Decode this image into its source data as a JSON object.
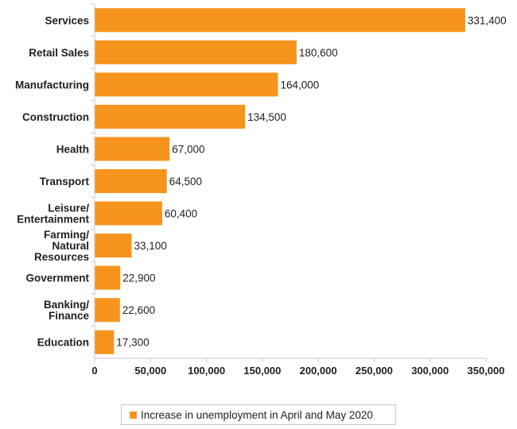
{
  "chart_data": {
    "type": "bar",
    "orientation": "horizontal",
    "categories": [
      [
        "Services"
      ],
      [
        "Retail Sales"
      ],
      [
        "Manufacturing"
      ],
      [
        "Construction"
      ],
      [
        "Health"
      ],
      [
        "Transport"
      ],
      [
        "Leisure/",
        "Entertainment"
      ],
      [
        "Farming/",
        "Natural",
        "Resources"
      ],
      [
        "Government"
      ],
      [
        "Banking/",
        "Finance"
      ],
      [
        "Education"
      ]
    ],
    "series": [
      {
        "name": "Increase in unemployment in April and May 2020",
        "values": [
          331400,
          180600,
          164000,
          134500,
          67000,
          64500,
          60400,
          33100,
          22900,
          22600,
          17300
        ],
        "value_labels": [
          "331,400",
          "180,600",
          "164,000",
          "134,500",
          "67,000",
          "64,500",
          "60,400",
          "33,100",
          "22,900",
          "22,600",
          "17,300"
        ]
      }
    ],
    "xlim": [
      0,
      350000
    ],
    "xticks": [
      0,
      50000,
      100000,
      150000,
      200000,
      250000,
      300000,
      350000
    ],
    "xtick_labels": [
      "0",
      "50,000",
      "100,000",
      "150,000",
      "200,000",
      "250,000",
      "300,000",
      "350,000"
    ],
    "grid": false,
    "legend_position": "bottom",
    "bar_color": "#F7941D"
  },
  "legend": {
    "label": "Increase in unemployment in April and May 2020"
  }
}
